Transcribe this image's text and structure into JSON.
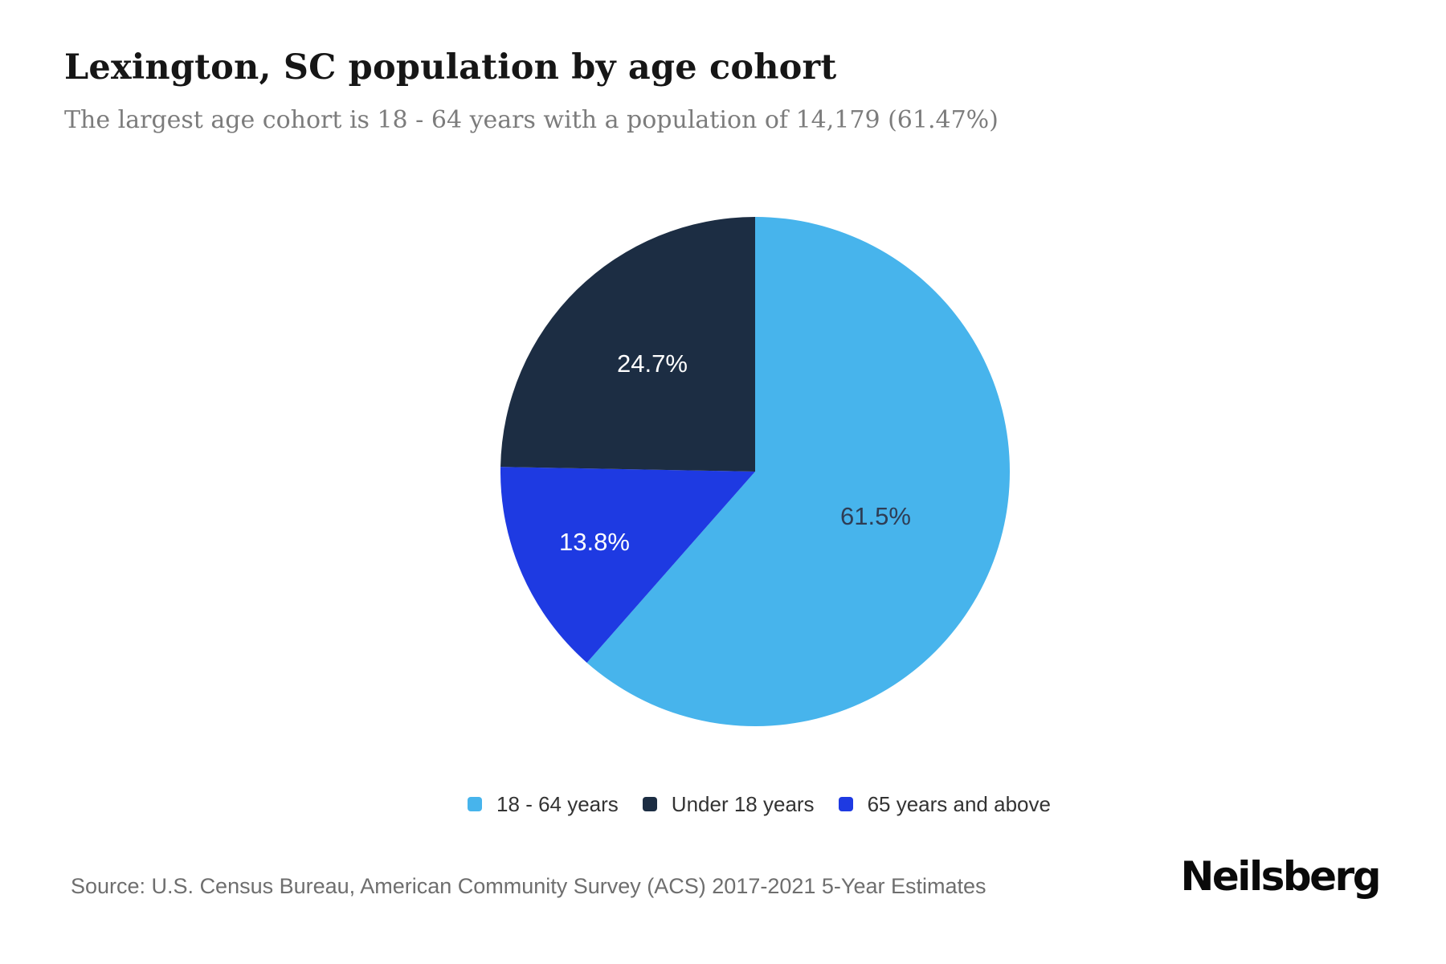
{
  "header": {
    "title": "Lexington, SC population by age cohort",
    "subtitle": "The largest age cohort is 18 - 64 years with a population of 14,179 (61.47%)"
  },
  "chart_data": {
    "type": "pie",
    "title": "Lexington, SC population by age cohort",
    "largest_cohort": {
      "label": "18 - 64 years",
      "population": "14,179",
      "pct": "61.47%"
    },
    "slices": [
      {
        "label": "18 - 64 years",
        "value_pct": 61.47,
        "pct_label": "61.5%",
        "color": "#47b4ec",
        "label_color": "#2e3d55"
      },
      {
        "label": "Under 18 years",
        "value_pct": 24.7,
        "pct_label": "24.7%",
        "color": "#1c2d43",
        "label_color": "#ffffff"
      },
      {
        "label": "65 years and above",
        "value_pct": 13.8,
        "pct_label": "13.8%",
        "color": "#1e3ae2",
        "label_color": "#ffffff"
      }
    ],
    "draw_order": [
      0,
      2,
      1
    ],
    "start_angle_deg": 0,
    "legend_position": "bottom"
  },
  "footer": {
    "source": "Source: U.S. Census Bureau, American Community Survey (ACS) 2017-2021 5-Year Estimates",
    "brand": "Neilsberg"
  }
}
